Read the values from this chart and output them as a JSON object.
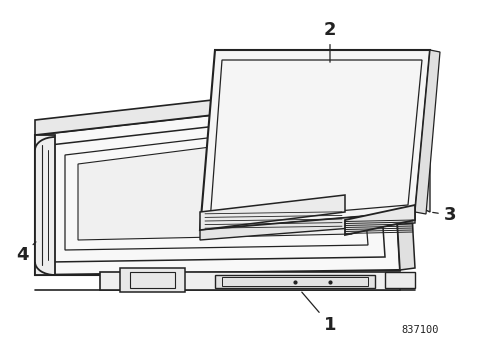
{
  "background_color": "#ffffff",
  "line_color": "#222222",
  "ref_number": "837100",
  "fig_width": 4.9,
  "fig_height": 3.6,
  "dpi": 100
}
